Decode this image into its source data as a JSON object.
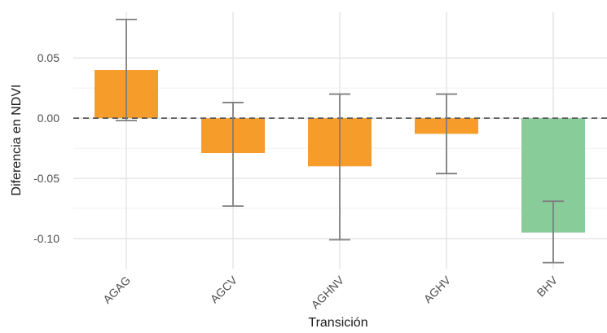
{
  "chart_data": {
    "type": "bar",
    "title": "",
    "xlabel": "Transición",
    "ylabel": "Diferencia en NDVI",
    "categories": [
      "AGAG",
      "AGCV",
      "AGHNV",
      "AGHV",
      "BHV"
    ],
    "values": [
      0.04,
      -0.029,
      -0.04,
      -0.013,
      -0.095
    ],
    "error_low": [
      -0.002,
      -0.073,
      -0.101,
      -0.046,
      -0.12
    ],
    "error_high": [
      0.082,
      0.013,
      0.02,
      0.02,
      -0.069
    ],
    "bar_colors": [
      "#f59c2a",
      "#f59c2a",
      "#f59c2a",
      "#f59c2a",
      "#88cc99"
    ],
    "y_ticks": [
      0.05,
      0.0,
      -0.05,
      -0.1
    ],
    "y_tick_labels": [
      "0.05",
      "0.00",
      "-0.05",
      "-0.10"
    ],
    "ylim": [
      -0.125,
      0.088
    ],
    "reference_line": 0,
    "grid": true,
    "legend": "none"
  }
}
